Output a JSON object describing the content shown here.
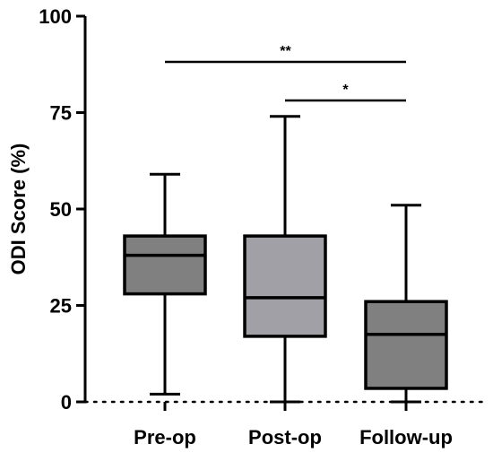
{
  "chart_data": {
    "type": "box",
    "ylabel": "ODI Score (%)",
    "ylim": [
      0,
      100
    ],
    "yticks": [
      0,
      25,
      50,
      75,
      100
    ],
    "categories": [
      "Pre-op",
      "Post-op",
      "Follow-up"
    ],
    "boxes": [
      {
        "category": "Pre-op",
        "min": 2,
        "q1": 28,
        "median": 38,
        "q3": 43,
        "max": 59,
        "color": "#808080"
      },
      {
        "category": "Post-op",
        "min": 0,
        "q1": 17,
        "median": 27,
        "q3": 43,
        "max": 74,
        "color": "#a0a0a6"
      },
      {
        "category": "Follow-up",
        "min": 0,
        "q1": 3.5,
        "median": 17.5,
        "q3": 26,
        "max": 51,
        "color": "#808080"
      }
    ],
    "reference_line": {
      "y": 0,
      "style": "dotted"
    },
    "significance": [
      {
        "from": "Pre-op",
        "to": "Follow-up",
        "y": 90,
        "label": "**"
      },
      {
        "from": "Post-op",
        "to": "Follow-up",
        "y": 80,
        "label": "*"
      }
    ]
  }
}
